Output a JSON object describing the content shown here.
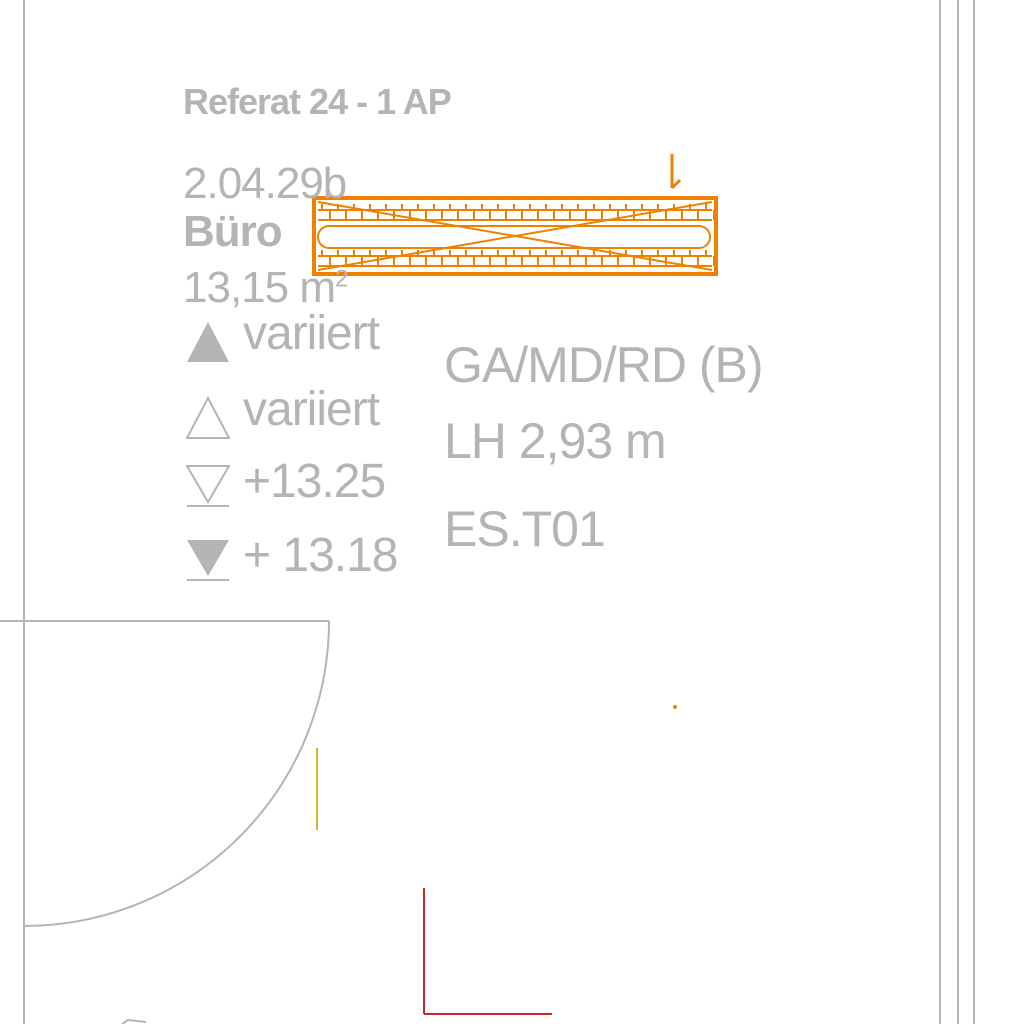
{
  "room": {
    "group": "Referat 24 -  1 AP",
    "number": "2.04.29b",
    "name": "Büro",
    "area_value": "13,15 m",
    "area_sup": "2"
  },
  "levels": [
    {
      "icon": "filled-up-triangle-icon",
      "value": "variiert"
    },
    {
      "icon": "outline-up-triangle-icon",
      "value": "variiert"
    },
    {
      "icon": "outline-down-triangle-icon",
      "value": "+13.25"
    },
    {
      "icon": "filled-down-triangle-icon",
      "value": "+ 13.18"
    }
  ],
  "info": {
    "usage": "GA/MD/RD (B)",
    "clear_height": "LH 2,93 m",
    "code": "ES.T01"
  },
  "colors": {
    "linework": "#b4b4b4",
    "text": "#b4b4b4",
    "radiator": "#f08000",
    "red_line": "#c62828",
    "yellow_line": "#d4b23a"
  }
}
